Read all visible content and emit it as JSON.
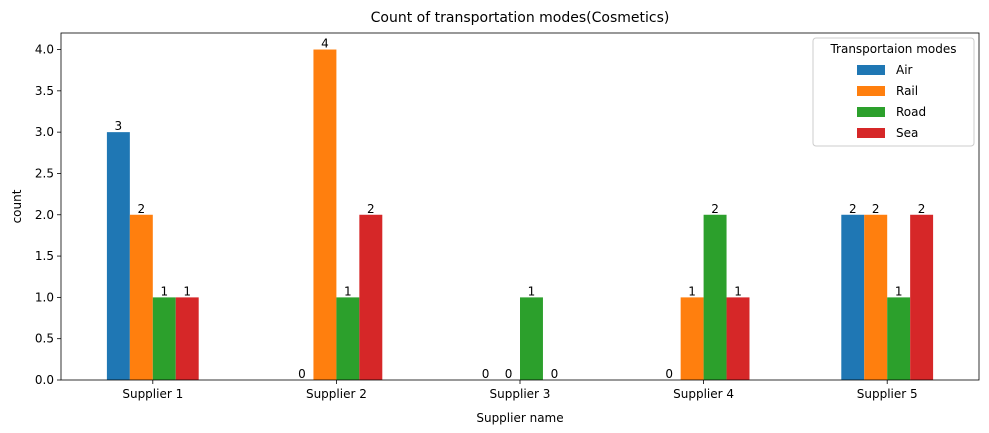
{
  "chart_data": {
    "type": "bar",
    "title": "Count of transportation modes(Cosmetics)",
    "xlabel": "Supplier name",
    "ylabel": "count",
    "categories": [
      "Supplier 1",
      "Supplier 2",
      "Supplier 3",
      "Supplier 4",
      "Supplier 5"
    ],
    "ylim": [
      0,
      4.2
    ],
    "yticks": [
      "0.0",
      "0.5",
      "1.0",
      "1.5",
      "2.0",
      "2.5",
      "3.0",
      "3.5",
      "4.0"
    ],
    "legend": {
      "title": "Transportaion modes",
      "position": "top-right"
    },
    "grid": false,
    "series": [
      {
        "name": "Air",
        "color": "#1f77b4",
        "values": [
          3,
          0,
          0,
          0,
          2
        ]
      },
      {
        "name": "Rail",
        "color": "#ff7f0e",
        "values": [
          2,
          4,
          0,
          1,
          2
        ]
      },
      {
        "name": "Road",
        "color": "#2ca02c",
        "values": [
          1,
          1,
          1,
          2,
          1
        ]
      },
      {
        "name": "Sea",
        "color": "#d62728",
        "values": [
          1,
          2,
          0,
          1,
          2
        ]
      }
    ]
  }
}
